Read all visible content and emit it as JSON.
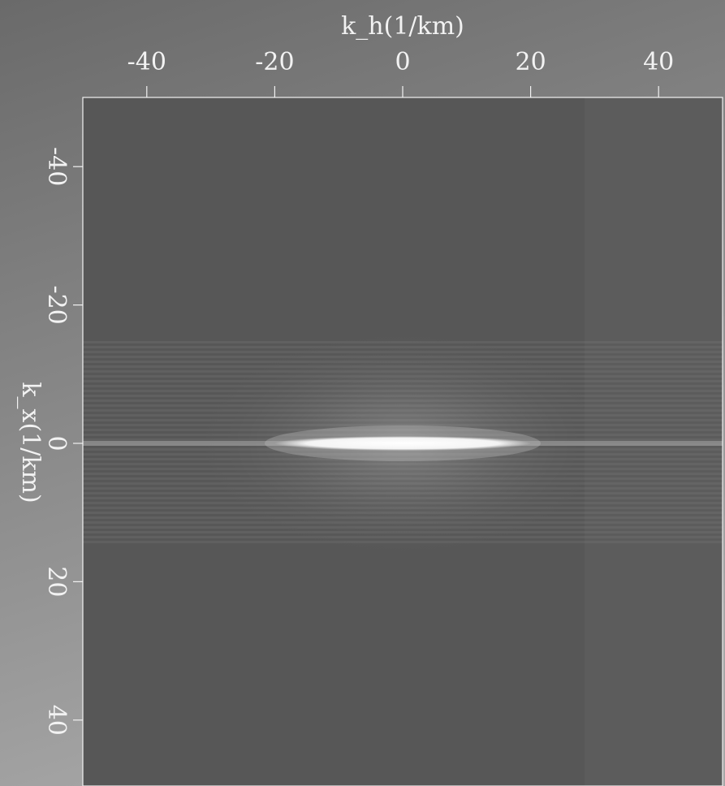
{
  "chart_data": {
    "type": "image",
    "xlabel": "k_h(1/km)",
    "ylabel": "k_x(1/km)",
    "xlim": [
      -50,
      50
    ],
    "ylim": [
      -50,
      50
    ],
    "xticks": [
      -40,
      -20,
      0,
      20,
      40
    ],
    "yticks": [
      -40,
      -20,
      0,
      20,
      40
    ],
    "y_inverted": true
  }
}
